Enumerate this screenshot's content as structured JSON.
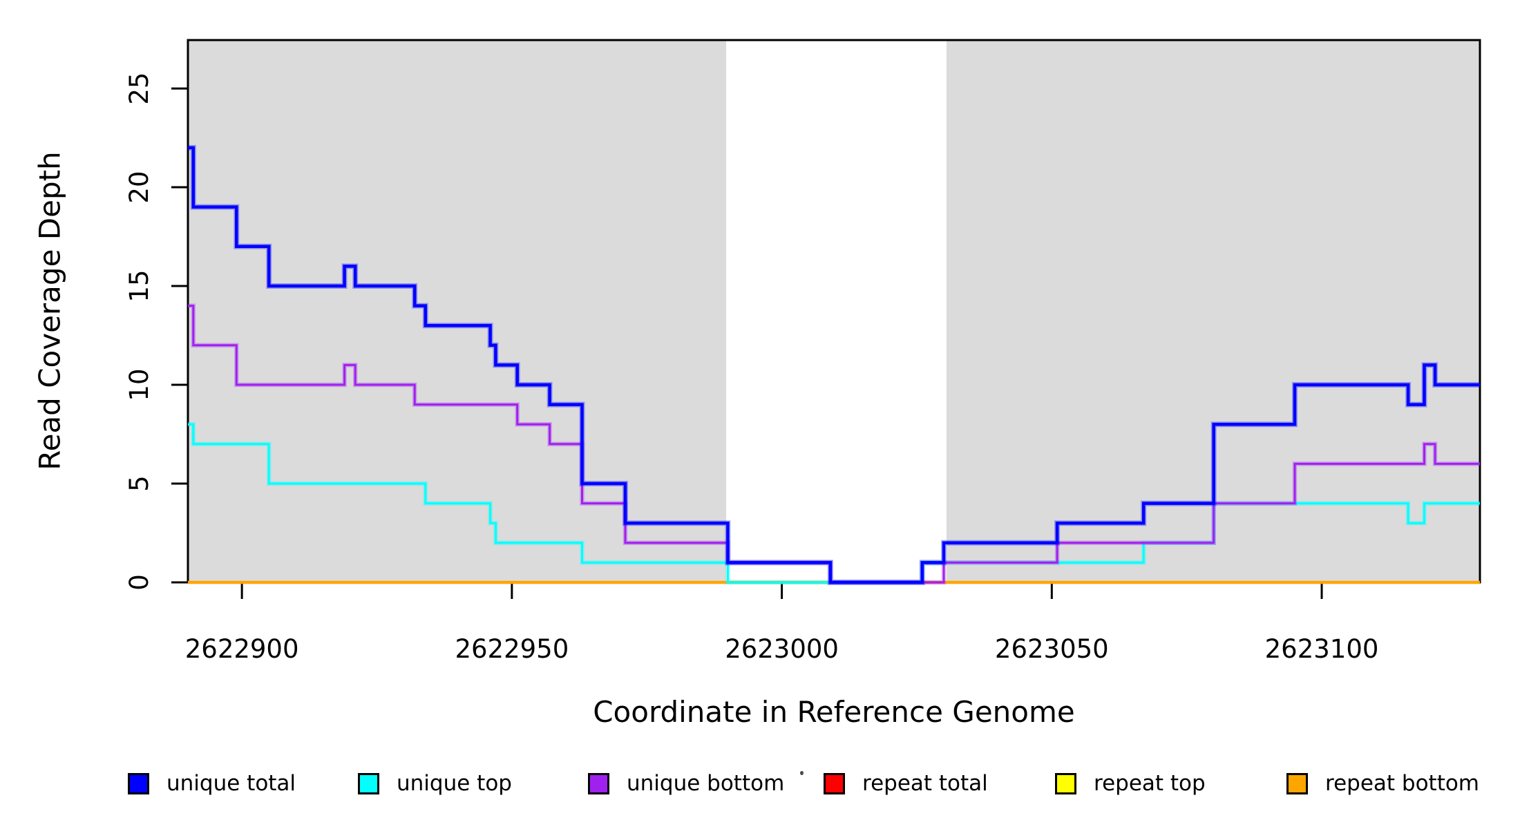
{
  "chart_data": {
    "type": "line",
    "subtype": "step",
    "title": "",
    "xlabel": "Coordinate in Reference Genome",
    "ylabel": "Read Coverage Depth",
    "xlim": [
      2622890,
      2623129.3
    ],
    "ylim": [
      0,
      27.45
    ],
    "grid": false,
    "legend_position": "bottom",
    "x_ticks": [
      {
        "value": 2622900,
        "label": "2622900"
      },
      {
        "value": 2622950,
        "label": "2622950"
      },
      {
        "value": 2623000,
        "label": "2623000"
      },
      {
        "value": 2623050,
        "label": "2623050"
      },
      {
        "value": 2623100,
        "label": "2623100"
      }
    ],
    "y_ticks": [
      {
        "value": 0,
        "label": "0"
      },
      {
        "value": 5,
        "label": "5"
      },
      {
        "value": 10,
        "label": "10"
      },
      {
        "value": 15,
        "label": "15"
      },
      {
        "value": 20,
        "label": "20"
      },
      {
        "value": 25,
        "label": "25"
      }
    ],
    "shaded_regions": [
      {
        "name": "left-gray-region",
        "x1": 2622890,
        "x2": 2622989.7,
        "color": "#DBDBDB"
      },
      {
        "name": "right-gray-region",
        "x1": 2623030.5,
        "x2": 2623129.3,
        "color": "#DBDBDB"
      }
    ],
    "x_end": 2623129.3,
    "series": [
      {
        "name": "repeat total",
        "color": "#FF0000",
        "width": 2.5,
        "halo": false,
        "steps": [
          [
            2622890,
            0
          ]
        ]
      },
      {
        "name": "repeat top",
        "color": "#FFFF00",
        "width": 2.5,
        "halo": false,
        "steps": [
          [
            2622890,
            0
          ]
        ]
      },
      {
        "name": "repeat bottom",
        "color": "#FFA500",
        "width": 4.5,
        "halo": false,
        "steps": [
          [
            2622890,
            0
          ]
        ]
      },
      {
        "name": "unique top",
        "color": "#00FFFF",
        "width": 3,
        "halo": true,
        "steps": [
          [
            2622890,
            8
          ],
          [
            2622891,
            7
          ],
          [
            2622905,
            5
          ],
          [
            2622934,
            4
          ],
          [
            2622946,
            3
          ],
          [
            2622947,
            2
          ],
          [
            2622963,
            1
          ],
          [
            2622990,
            0
          ],
          [
            2623026,
            1
          ],
          [
            2623067,
            2
          ],
          [
            2623080,
            4
          ],
          [
            2623116,
            3
          ],
          [
            2623119,
            4
          ]
        ]
      },
      {
        "name": "unique bottom",
        "color": "#A020F0",
        "width": 3,
        "halo": true,
        "steps": [
          [
            2622890,
            14
          ],
          [
            2622891,
            12
          ],
          [
            2622899,
            10
          ],
          [
            2622919,
            11
          ],
          [
            2622921,
            10
          ],
          [
            2622932,
            9
          ],
          [
            2622951,
            8
          ],
          [
            2622957,
            7
          ],
          [
            2622963,
            4
          ],
          [
            2622971,
            2
          ],
          [
            2622990,
            1
          ],
          [
            2623009,
            0
          ],
          [
            2623030,
            1
          ],
          [
            2623051,
            2
          ],
          [
            2623080,
            4
          ],
          [
            2623095,
            6
          ],
          [
            2623119,
            7
          ],
          [
            2623121,
            6
          ]
        ]
      },
      {
        "name": "unique total",
        "color": "#0000FF",
        "width": 4.5,
        "halo": true,
        "steps": [
          [
            2622890,
            22
          ],
          [
            2622891,
            19
          ],
          [
            2622899,
            17
          ],
          [
            2622905,
            15
          ],
          [
            2622919,
            16
          ],
          [
            2622921,
            15
          ],
          [
            2622932,
            14
          ],
          [
            2622934,
            13
          ],
          [
            2622946,
            12
          ],
          [
            2622947,
            11
          ],
          [
            2622951,
            10
          ],
          [
            2622957,
            9
          ],
          [
            2622963,
            5
          ],
          [
            2622971,
            3
          ],
          [
            2622990,
            1
          ],
          [
            2623009,
            0
          ],
          [
            2623026,
            1
          ],
          [
            2623030,
            2
          ],
          [
            2623051,
            3
          ],
          [
            2623067,
            4
          ],
          [
            2623080,
            8
          ],
          [
            2623095,
            10
          ],
          [
            2623116,
            9
          ],
          [
            2623119,
            11
          ],
          [
            2623121,
            10
          ]
        ]
      }
    ],
    "legend": [
      {
        "label": "unique total",
        "color": "#0000FF"
      },
      {
        "label": "unique top",
        "color": "#00FFFF"
      },
      {
        "label": "unique bottom",
        "color": "#A020F0"
      },
      {
        "label": "repeat total",
        "color": "#FF0000"
      },
      {
        "label": "repeat top",
        "color": "#FFFF00"
      },
      {
        "label": "repeat bottom",
        "color": "#FFA500"
      }
    ]
  }
}
